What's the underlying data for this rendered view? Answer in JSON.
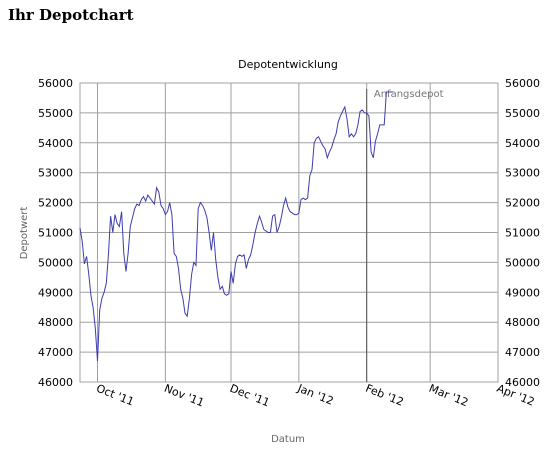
{
  "page": {
    "title": "Ihr Depotchart"
  },
  "chart_data": {
    "type": "line",
    "title": "Depotentwicklung",
    "xlabel": "Datum",
    "ylabel": "Depotwert",
    "ylim": [
      46000,
      56000
    ],
    "yticks": [
      46000,
      47000,
      48000,
      49000,
      50000,
      51000,
      52000,
      53000,
      54000,
      55000,
      56000
    ],
    "xlim": [
      "2011-09-23",
      "2012-04-01"
    ],
    "xticks": [
      {
        "date": "2011-10-01",
        "label": "Oct '11"
      },
      {
        "date": "2011-11-01",
        "label": "Nov '11"
      },
      {
        "date": "2011-12-01",
        "label": "Dec '11"
      },
      {
        "date": "2012-01-01",
        "label": "Jan '12"
      },
      {
        "date": "2012-02-01",
        "label": "Feb '12"
      },
      {
        "date": "2012-03-01",
        "label": "Mar '12"
      },
      {
        "date": "2012-04-01",
        "label": "Apr '12"
      }
    ],
    "grid": true,
    "colors": {
      "line": "#3d3dae",
      "grid": "#a0a0a0",
      "annotation_line": "#555555"
    },
    "annotation": {
      "label": "Anfangsdepot",
      "date": "2012-02-01"
    },
    "series": [
      {
        "values": [
          [
            "2011-09-23",
            51150
          ],
          [
            "2011-09-24",
            50700
          ],
          [
            "2011-09-25",
            49950
          ],
          [
            "2011-09-26",
            50200
          ],
          [
            "2011-09-27",
            49600
          ],
          [
            "2011-09-28",
            48900
          ],
          [
            "2011-09-29",
            48500
          ],
          [
            "2011-09-30",
            47800
          ],
          [
            "2011-10-01",
            46700
          ],
          [
            "2011-10-02",
            48400
          ],
          [
            "2011-10-03",
            48800
          ],
          [
            "2011-10-04",
            49000
          ],
          [
            "2011-10-05",
            49300
          ],
          [
            "2011-10-06",
            50300
          ],
          [
            "2011-10-07",
            51550
          ],
          [
            "2011-10-08",
            51000
          ],
          [
            "2011-10-09",
            51600
          ],
          [
            "2011-10-10",
            51300
          ],
          [
            "2011-10-11",
            51200
          ],
          [
            "2011-10-12",
            51700
          ],
          [
            "2011-10-13",
            50300
          ],
          [
            "2011-10-14",
            49700
          ],
          [
            "2011-10-15",
            50300
          ],
          [
            "2011-10-16",
            51200
          ],
          [
            "2011-10-17",
            51500
          ],
          [
            "2011-10-18",
            51800
          ],
          [
            "2011-10-19",
            51950
          ],
          [
            "2011-10-20",
            51900
          ],
          [
            "2011-10-21",
            52100
          ],
          [
            "2011-10-22",
            52200
          ],
          [
            "2011-10-23",
            52050
          ],
          [
            "2011-10-24",
            52250
          ],
          [
            "2011-10-25",
            52150
          ],
          [
            "2011-10-26",
            52050
          ],
          [
            "2011-10-27",
            51950
          ],
          [
            "2011-10-28",
            52500
          ],
          [
            "2011-10-29",
            52350
          ],
          [
            "2011-10-30",
            51900
          ],
          [
            "2011-10-31",
            51800
          ],
          [
            "2011-11-01",
            51600
          ],
          [
            "2011-11-02",
            51700
          ],
          [
            "2011-11-03",
            52000
          ],
          [
            "2011-11-04",
            51600
          ],
          [
            "2011-11-05",
            50300
          ],
          [
            "2011-11-06",
            50200
          ],
          [
            "2011-11-07",
            49800
          ],
          [
            "2011-11-08",
            49100
          ],
          [
            "2011-11-09",
            48800
          ],
          [
            "2011-11-10",
            48300
          ],
          [
            "2011-11-11",
            48200
          ],
          [
            "2011-11-12",
            48800
          ],
          [
            "2011-11-13",
            49600
          ],
          [
            "2011-11-14",
            50000
          ],
          [
            "2011-11-15",
            49900
          ],
          [
            "2011-11-16",
            51800
          ],
          [
            "2011-11-17",
            52000
          ],
          [
            "2011-11-18",
            51900
          ],
          [
            "2011-11-19",
            51750
          ],
          [
            "2011-11-20",
            51500
          ],
          [
            "2011-11-21",
            51000
          ],
          [
            "2011-11-22",
            50400
          ],
          [
            "2011-11-23",
            51000
          ],
          [
            "2011-11-24",
            50100
          ],
          [
            "2011-11-25",
            49500
          ],
          [
            "2011-11-26",
            49100
          ],
          [
            "2011-11-27",
            49200
          ],
          [
            "2011-11-28",
            48950
          ],
          [
            "2011-11-29",
            48900
          ],
          [
            "2011-11-30",
            48950
          ],
          [
            "2011-12-01",
            49700
          ],
          [
            "2011-12-02",
            49300
          ],
          [
            "2011-12-03",
            49950
          ],
          [
            "2011-12-04",
            50200
          ],
          [
            "2011-12-05",
            50250
          ],
          [
            "2011-12-06",
            50200
          ],
          [
            "2011-12-07",
            50250
          ],
          [
            "2011-12-08",
            49800
          ],
          [
            "2011-12-09",
            50100
          ],
          [
            "2011-12-10",
            50250
          ],
          [
            "2011-12-11",
            50600
          ],
          [
            "2011-12-12",
            51000
          ],
          [
            "2011-12-13",
            51300
          ],
          [
            "2011-12-14",
            51550
          ],
          [
            "2011-12-15",
            51350
          ],
          [
            "2011-12-16",
            51100
          ],
          [
            "2011-12-17",
            51050
          ],
          [
            "2011-12-18",
            51000
          ],
          [
            "2011-12-19",
            51000
          ],
          [
            "2011-12-20",
            51550
          ],
          [
            "2011-12-21",
            51600
          ],
          [
            "2011-12-22",
            51000
          ],
          [
            "2011-12-23",
            51200
          ],
          [
            "2011-12-24",
            51500
          ],
          [
            "2011-12-25",
            51900
          ],
          [
            "2011-12-26",
            52150
          ],
          [
            "2011-12-27",
            51850
          ],
          [
            "2011-12-28",
            51700
          ],
          [
            "2011-12-29",
            51650
          ],
          [
            "2011-12-30",
            51600
          ],
          [
            "2011-12-31",
            51600
          ],
          [
            "2012-01-01",
            51650
          ],
          [
            "2012-01-02",
            52100
          ],
          [
            "2012-01-03",
            52150
          ],
          [
            "2012-01-04",
            52100
          ],
          [
            "2012-01-05",
            52150
          ],
          [
            "2012-01-06",
            52900
          ],
          [
            "2012-01-07",
            53100
          ],
          [
            "2012-01-08",
            54000
          ],
          [
            "2012-01-09",
            54150
          ],
          [
            "2012-01-10",
            54200
          ],
          [
            "2012-01-11",
            54050
          ],
          [
            "2012-01-12",
            53900
          ],
          [
            "2012-01-13",
            53800
          ],
          [
            "2012-01-14",
            53500
          ],
          [
            "2012-01-15",
            53700
          ],
          [
            "2012-01-16",
            53850
          ],
          [
            "2012-01-17",
            54100
          ],
          [
            "2012-01-18",
            54300
          ],
          [
            "2012-01-19",
            54700
          ],
          [
            "2012-01-20",
            54900
          ],
          [
            "2012-01-21",
            55050
          ],
          [
            "2012-01-22",
            55200
          ],
          [
            "2012-01-23",
            54800
          ],
          [
            "2012-01-24",
            54200
          ],
          [
            "2012-01-25",
            54300
          ],
          [
            "2012-01-26",
            54200
          ],
          [
            "2012-01-27",
            54300
          ],
          [
            "2012-01-28",
            54600
          ],
          [
            "2012-01-29",
            55050
          ],
          [
            "2012-01-30",
            55100
          ],
          [
            "2012-01-31",
            55000
          ],
          [
            "2012-02-01",
            55000
          ],
          [
            "2012-02-02",
            54900
          ],
          [
            "2012-02-03",
            53700
          ],
          [
            "2012-02-04",
            53500
          ],
          [
            "2012-02-05",
            54050
          ],
          [
            "2012-02-06",
            54300
          ],
          [
            "2012-02-07",
            54600
          ],
          [
            "2012-02-08",
            54600
          ],
          [
            "2012-02-09",
            54600
          ],
          [
            "2012-02-10",
            55700
          ],
          [
            "2012-02-11",
            55700
          ],
          [
            "2012-02-12",
            55700
          ],
          [
            "2012-02-13",
            55700
          ]
        ]
      }
    ]
  }
}
